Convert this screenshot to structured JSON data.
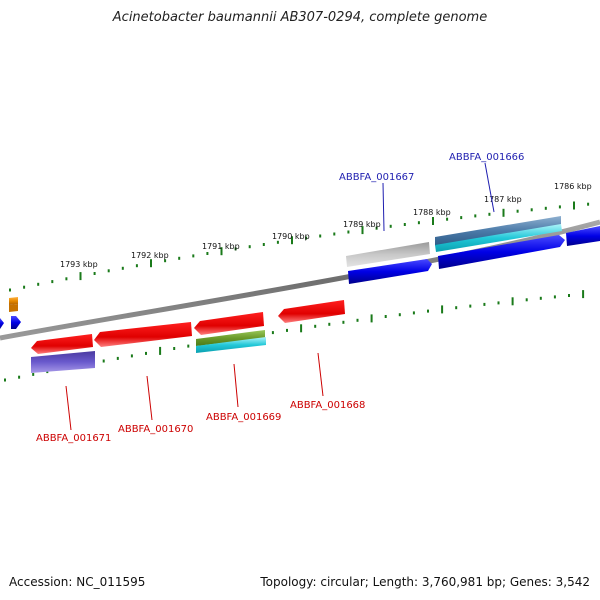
{
  "title": "Acinetobacter baumannii AB307-0294, complete genome",
  "footer": {
    "accession": "Accession: NC_011595",
    "summary": "Topology: circular; Length: 3,760,981 bp; Genes: 3,542"
  },
  "colors": {
    "backbone": "#808080",
    "tick": "#1a7a1a",
    "forward_label": "#1f1fb0",
    "reverse_label": "#cc0000",
    "cds_forward": "#0000e6",
    "cds_reverse": "#e60000",
    "gray_feature": "#b0b0b0",
    "steel_feature": "#4b7aa8",
    "cyan_feature": "#22c8d8",
    "olive_feature": "#6a9a2a",
    "purple_feature": "#6a5acd",
    "orange_feature": "#e68a00"
  },
  "tick_labels": [
    "1793 kbp",
    "1792 kbp",
    "1791 kbp",
    "1790 kbp",
    "1789 kbp",
    "1788 kbp",
    "1787 kbp",
    "1786 kbp"
  ],
  "gene_labels": {
    "forward": [
      "ABBFA_001667",
      "ABBFA_001666"
    ],
    "reverse": [
      "ABBFA_001671",
      "ABBFA_001670",
      "ABBFA_001669",
      "ABBFA_001668"
    ]
  }
}
